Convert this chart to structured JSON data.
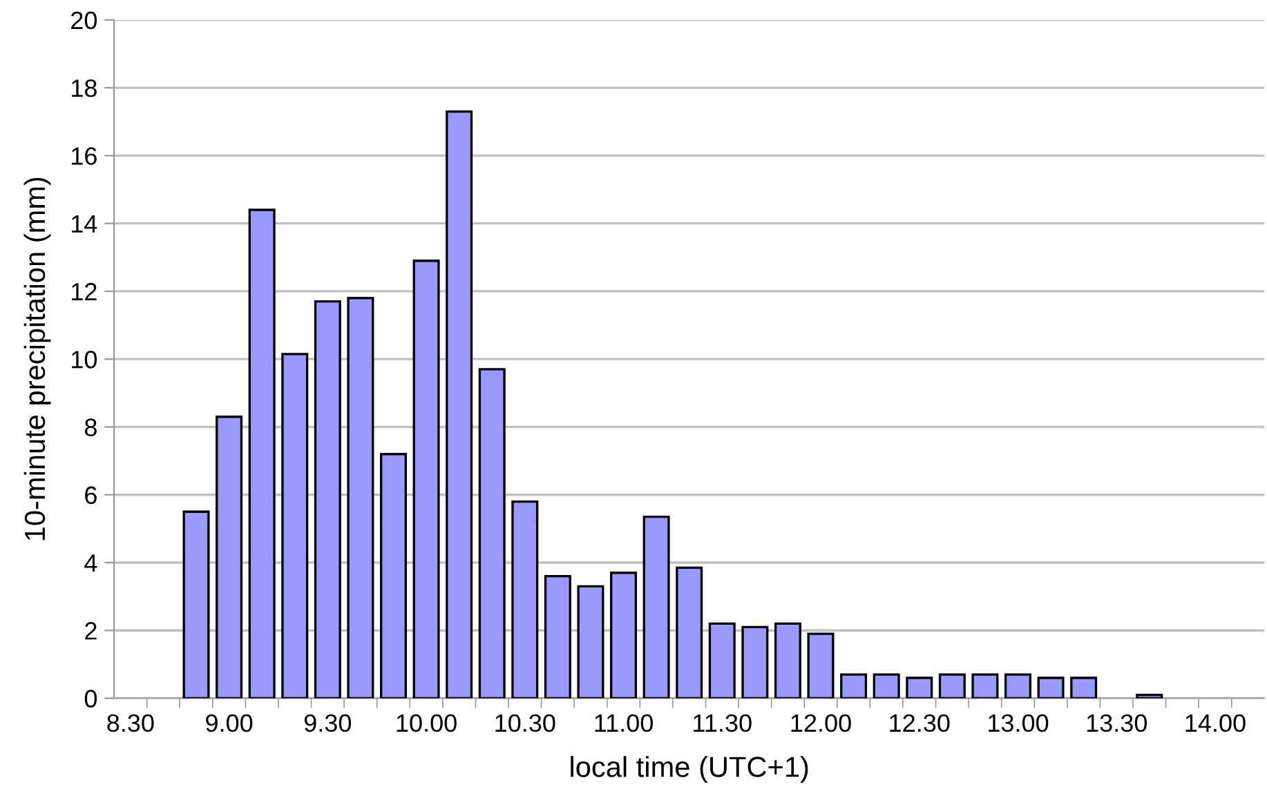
{
  "chart_data": {
    "type": "bar",
    "xlabel": "local time (UTC+1)",
    "ylabel": "10-minute precipitation (mm)",
    "categories": [
      "8.30",
      null,
      null,
      "9.00",
      null,
      null,
      "9.30",
      null,
      null,
      "10.00",
      null,
      null,
      "10.30",
      null,
      null,
      "11.00",
      null,
      null,
      "11.30",
      null,
      null,
      "12.00",
      null,
      null,
      "12.30",
      null,
      null,
      "13.00",
      null,
      null,
      "13.30",
      null,
      null,
      "14.00",
      null
    ],
    "values": [
      null,
      null,
      5.5,
      8.3,
      14.4,
      10.15,
      11.7,
      11.8,
      7.2,
      12.9,
      17.3,
      9.7,
      5.8,
      3.6,
      3.3,
      3.7,
      5.35,
      3.85,
      2.2,
      2.1,
      2.2,
      1.9,
      0.7,
      0.7,
      0.6,
      0.7,
      0.7,
      0.7,
      0.6,
      0.6,
      null,
      0.1,
      null,
      null,
      null
    ],
    "color": "#9999ff",
    "ylim": [
      0,
      20
    ],
    "yticks": [
      0,
      2,
      4,
      6,
      8,
      10,
      12,
      14,
      16,
      18,
      20
    ],
    "grid": "y"
  }
}
